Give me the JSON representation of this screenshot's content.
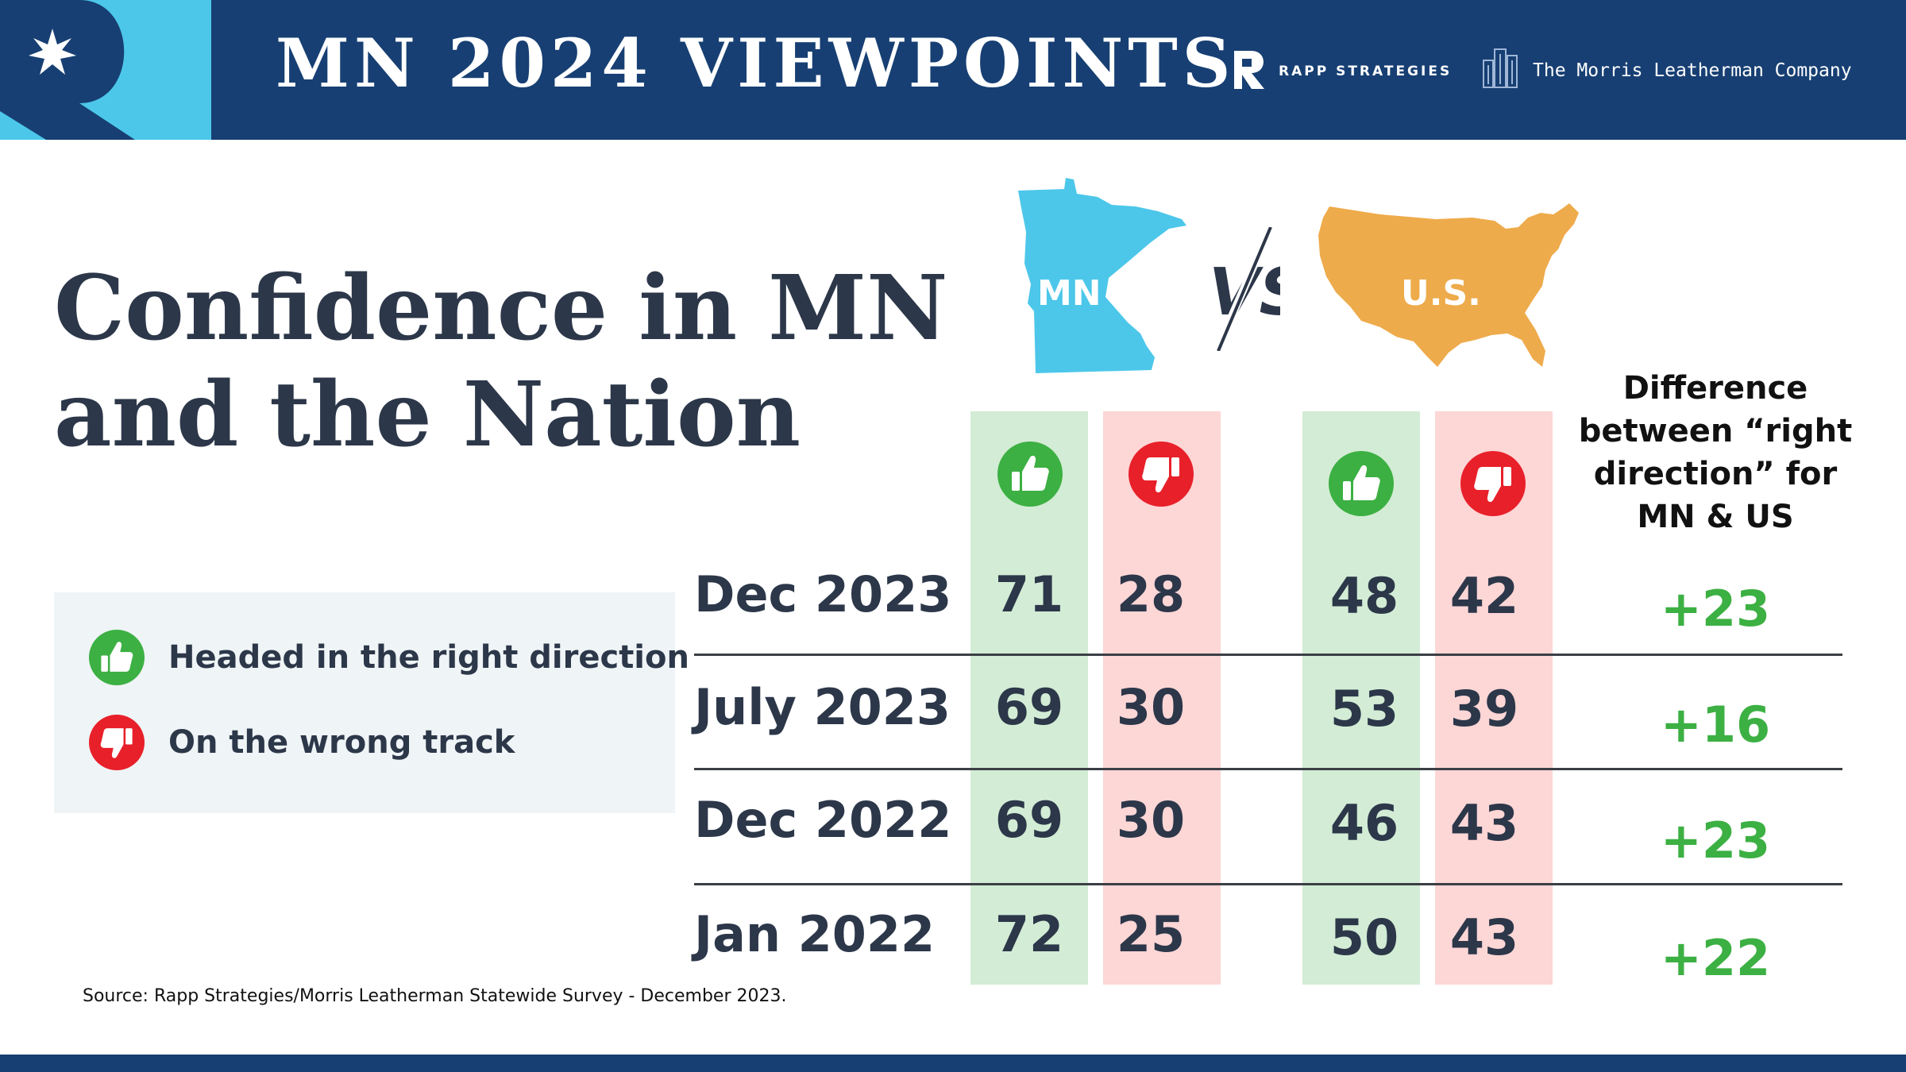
{
  "header": {
    "title": "MN 2024 VIEWPOINTS",
    "partner1": "RAPP STRATEGIES",
    "partner2": "The Morris Leatherman Company"
  },
  "title_line1": "Confidence in MN",
  "title_line2": "and the Nation",
  "legend": {
    "right": "Headed in the right direction",
    "wrong": "On the wrong track"
  },
  "maps": {
    "mn_label": "MN",
    "us_label": "U.S."
  },
  "diff_header": [
    "Difference",
    "between “right",
    "direction” for",
    "MN & US"
  ],
  "source": "Source: Rapp Strategies/Morris Leatherman Statewide Survey - December 2023.",
  "colors": {
    "navy": "#173f73",
    "cyan": "#4cc7ea",
    "orange": "#eeab4b",
    "green": "#3cb043",
    "red": "#e8202a"
  },
  "chart_data": {
    "type": "table",
    "title": "Confidence in MN and the Nation",
    "columns": [
      "MN right direction",
      "MN wrong track",
      "U.S. right direction",
      "U.S. wrong track",
      "Difference between “right direction” for MN & US"
    ],
    "rows": [
      {
        "label": "Dec 2023",
        "mn_right": "71",
        "mn_wrong": "28",
        "us_right": "48",
        "us_wrong": "42",
        "diff": "+23"
      },
      {
        "label": "July 2023",
        "mn_right": "69",
        "mn_wrong": "30",
        "us_right": "53",
        "us_wrong": "39",
        "diff": "+16"
      },
      {
        "label": "Dec 2022",
        "mn_right": "69",
        "mn_wrong": "30",
        "us_right": "46",
        "us_wrong": "43",
        "diff": "+23"
      },
      {
        "label": "Jan 2022",
        "mn_right": "72",
        "mn_wrong": "25",
        "us_right": "50",
        "us_wrong": "43",
        "diff": "+22"
      }
    ]
  }
}
